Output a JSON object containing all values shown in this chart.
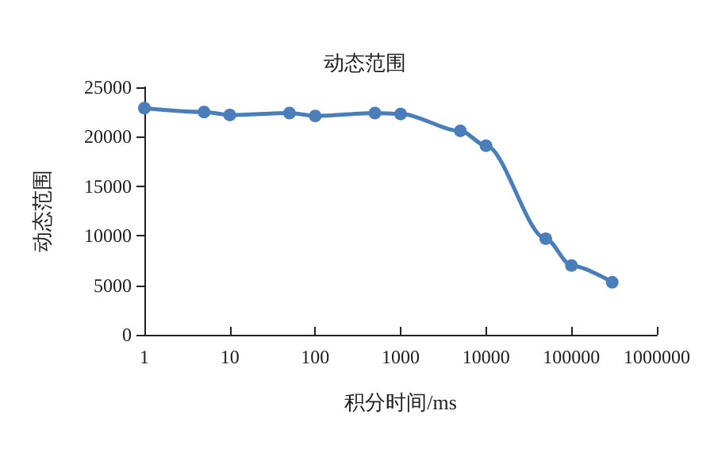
{
  "chart_data": {
    "type": "line",
    "title": "动态范围",
    "xlabel": "积分时间/ms",
    "ylabel": "动态范围",
    "x": [
      1,
      5,
      10,
      50,
      100,
      500,
      1000,
      5000,
      10000,
      50000,
      100000,
      300000
    ],
    "series": [
      {
        "color": "#4a7ebb",
        "values": [
          22900,
          22500,
          22200,
          22400,
          22100,
          22400,
          22300,
          20600,
          19100,
          9700,
          7000,
          5300
        ]
      }
    ],
    "log": "x",
    "xlim": [
      1,
      1000000
    ],
    "xticks": [
      1,
      10,
      100,
      1000,
      10000,
      100000,
      1000000
    ],
    "ylim": [
      0,
      25000
    ],
    "yticks": [
      0,
      5000,
      10000,
      15000,
      20000,
      25000
    ],
    "grid": false,
    "marker": "circle",
    "line_style": "solid"
  }
}
